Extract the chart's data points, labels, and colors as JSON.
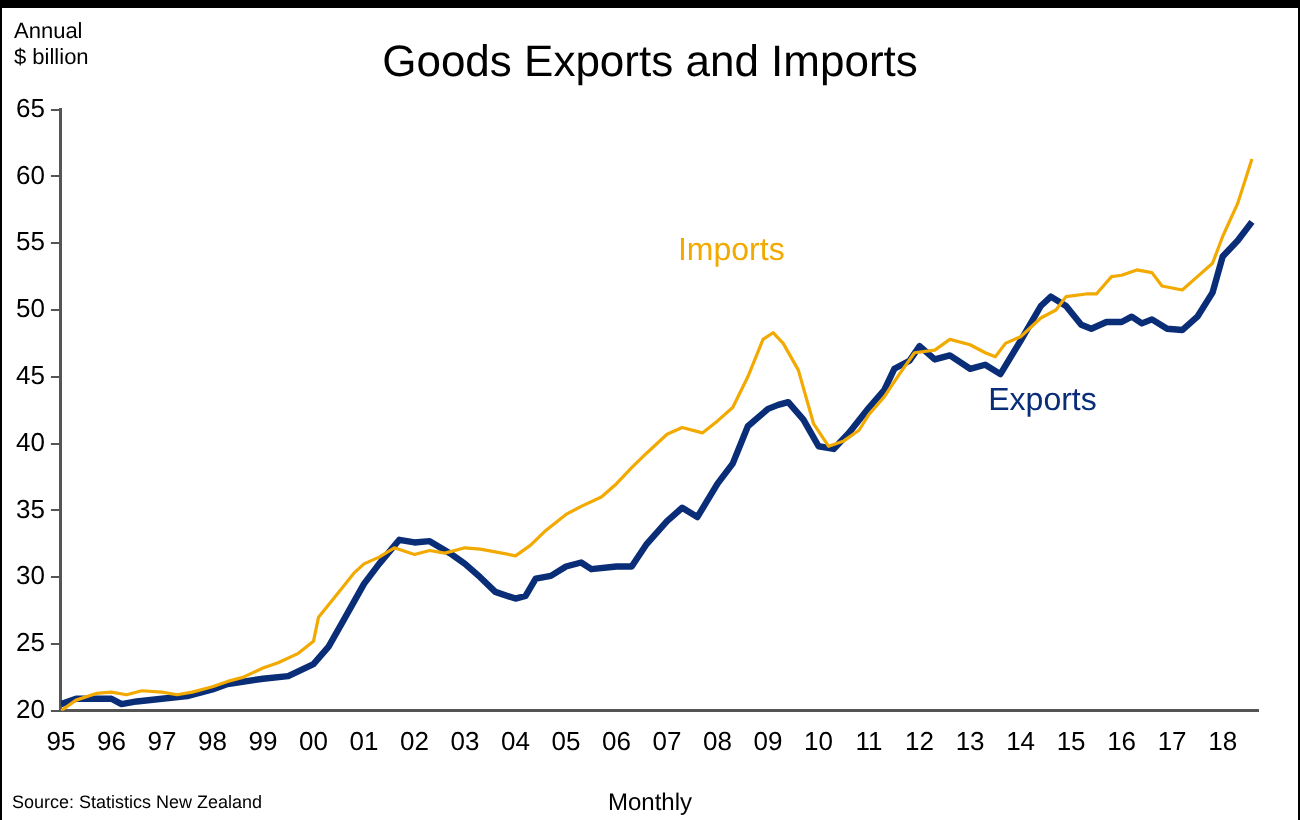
{
  "chart_data": {
    "type": "line",
    "title": "Goods Exports and Imports",
    "ylabel": "Annual\n$ billion",
    "xlabel": "Monthly",
    "annotations": [
      "Source: Statistics New Zealand"
    ],
    "xlim": [
      1995,
      2018.7
    ],
    "xticks": [
      {
        "value": 1995,
        "label": "95"
      },
      {
        "value": 1996,
        "label": "96"
      },
      {
        "value": 1997,
        "label": "97"
      },
      {
        "value": 1998,
        "label": "98"
      },
      {
        "value": 1999,
        "label": "99"
      },
      {
        "value": 2000,
        "label": "00"
      },
      {
        "value": 2001,
        "label": "01"
      },
      {
        "value": 2002,
        "label": "02"
      },
      {
        "value": 2003,
        "label": "03"
      },
      {
        "value": 2004,
        "label": "04"
      },
      {
        "value": 2005,
        "label": "05"
      },
      {
        "value": 2006,
        "label": "06"
      },
      {
        "value": 2007,
        "label": "07"
      },
      {
        "value": 2008,
        "label": "08"
      },
      {
        "value": 2009,
        "label": "09"
      },
      {
        "value": 2010,
        "label": "10"
      },
      {
        "value": 2011,
        "label": "11"
      },
      {
        "value": 2012,
        "label": "12"
      },
      {
        "value": 2013,
        "label": "13"
      },
      {
        "value": 2014,
        "label": "14"
      },
      {
        "value": 2015,
        "label": "15"
      },
      {
        "value": 2016,
        "label": "16"
      },
      {
        "value": 2017,
        "label": "17"
      },
      {
        "value": 2018,
        "label": "18"
      }
    ],
    "ylim": [
      20,
      65
    ],
    "yticks": [
      20,
      25,
      30,
      35,
      40,
      45,
      50,
      55,
      60,
      65
    ],
    "grid": false,
    "legend": false,
    "marker": "none",
    "line_style": "solid",
    "series": [
      {
        "name": "Imports",
        "color": "#f2a900",
        "x": [
          1995.0,
          1995.3,
          1995.7,
          1996.0,
          1996.3,
          1996.6,
          1997.0,
          1997.3,
          1997.6,
          1998.0,
          1998.3,
          1998.6,
          1999.0,
          1999.3,
          1999.7,
          2000.0,
          2000.1,
          2000.4,
          2000.8,
          2001.0,
          2001.3,
          2001.6,
          2002.0,
          2002.3,
          2002.6,
          2003.0,
          2003.3,
          2003.6,
          2004.0,
          2004.3,
          2004.6,
          2005.0,
          2005.3,
          2005.7,
          2006.0,
          2006.3,
          2006.6,
          2007.0,
          2007.3,
          2007.7,
          2008.0,
          2008.3,
          2008.6,
          2008.9,
          2009.1,
          2009.3,
          2009.6,
          2009.9,
          2010.2,
          2010.5,
          2010.8,
          2011.0,
          2011.3,
          2011.6,
          2011.9,
          2012.3,
          2012.6,
          2013.0,
          2013.3,
          2013.5,
          2013.7,
          2014.0,
          2014.4,
          2014.7,
          2014.9,
          2015.3,
          2015.5,
          2015.8,
          2016.0,
          2016.3,
          2016.6,
          2016.8,
          2017.2,
          2017.5,
          2017.8,
          2018.0,
          2018.3,
          2018.58
        ],
        "values": [
          20.0,
          20.8,
          21.3,
          21.4,
          21.2,
          21.5,
          21.4,
          21.2,
          21.4,
          21.8,
          22.2,
          22.5,
          23.2,
          23.6,
          24.3,
          25.2,
          27.0,
          28.4,
          30.3,
          31.0,
          31.5,
          32.2,
          31.7,
          32.0,
          31.8,
          32.2,
          32.1,
          31.9,
          31.6,
          32.4,
          33.5,
          34.7,
          35.3,
          36.0,
          37.0,
          38.2,
          39.3,
          40.7,
          41.2,
          40.8,
          41.7,
          42.7,
          45.0,
          47.8,
          48.3,
          47.5,
          45.5,
          41.5,
          39.8,
          40.2,
          41.0,
          42.2,
          43.5,
          45.2,
          46.8,
          47.0,
          47.8,
          47.4,
          46.8,
          46.5,
          47.5,
          48.0,
          49.4,
          50.0,
          51.0,
          51.2,
          51.2,
          52.5,
          52.6,
          53.0,
          52.8,
          51.8,
          51.5,
          52.5,
          53.5,
          55.5,
          58.0,
          61.3
        ]
      },
      {
        "name": "Exports",
        "color": "#0a2d78",
        "x": [
          1995.0,
          1995.3,
          1996.0,
          1996.2,
          1996.5,
          1997.0,
          1997.5,
          1998.0,
          1998.3,
          1999.0,
          1999.5,
          2000.0,
          2000.3,
          2000.6,
          2001.0,
          2001.3,
          2001.7,
          2002.0,
          2002.3,
          2002.7,
          2003.0,
          2003.3,
          2003.6,
          2004.0,
          2004.2,
          2004.4,
          2004.7,
          2005.0,
          2005.3,
          2005.5,
          2006.0,
          2006.3,
          2006.6,
          2007.0,
          2007.3,
          2007.6,
          2008.0,
          2008.3,
          2008.6,
          2009.0,
          2009.2,
          2009.4,
          2009.7,
          2010.0,
          2010.3,
          2010.6,
          2011.0,
          2011.3,
          2011.5,
          2011.8,
          2012.0,
          2012.3,
          2012.6,
          2013.0,
          2013.3,
          2013.6,
          2014.0,
          2014.4,
          2014.6,
          2014.9,
          2015.2,
          2015.4,
          2015.7,
          2016.0,
          2016.2,
          2016.4,
          2016.6,
          2016.9,
          2017.2,
          2017.5,
          2017.8,
          2018.0,
          2018.3,
          2018.58
        ],
        "values": [
          20.5,
          20.9,
          20.9,
          20.5,
          20.7,
          20.9,
          21.1,
          21.6,
          22.0,
          22.4,
          22.6,
          23.5,
          24.8,
          26.8,
          29.5,
          31.0,
          32.8,
          32.6,
          32.7,
          31.8,
          31.0,
          30.0,
          28.9,
          28.4,
          28.6,
          29.9,
          30.1,
          30.8,
          31.1,
          30.6,
          30.8,
          30.8,
          32.5,
          34.2,
          35.2,
          34.5,
          37.0,
          38.5,
          41.3,
          42.6,
          42.9,
          43.1,
          41.8,
          39.8,
          39.6,
          40.8,
          42.7,
          44.0,
          45.6,
          46.2,
          47.3,
          46.3,
          46.6,
          45.6,
          45.9,
          45.2,
          47.7,
          50.3,
          51.0,
          50.3,
          48.9,
          48.6,
          49.1,
          49.1,
          49.5,
          49.0,
          49.3,
          48.6,
          48.5,
          49.5,
          51.3,
          54.0,
          55.2,
          56.6
        ]
      }
    ]
  }
}
